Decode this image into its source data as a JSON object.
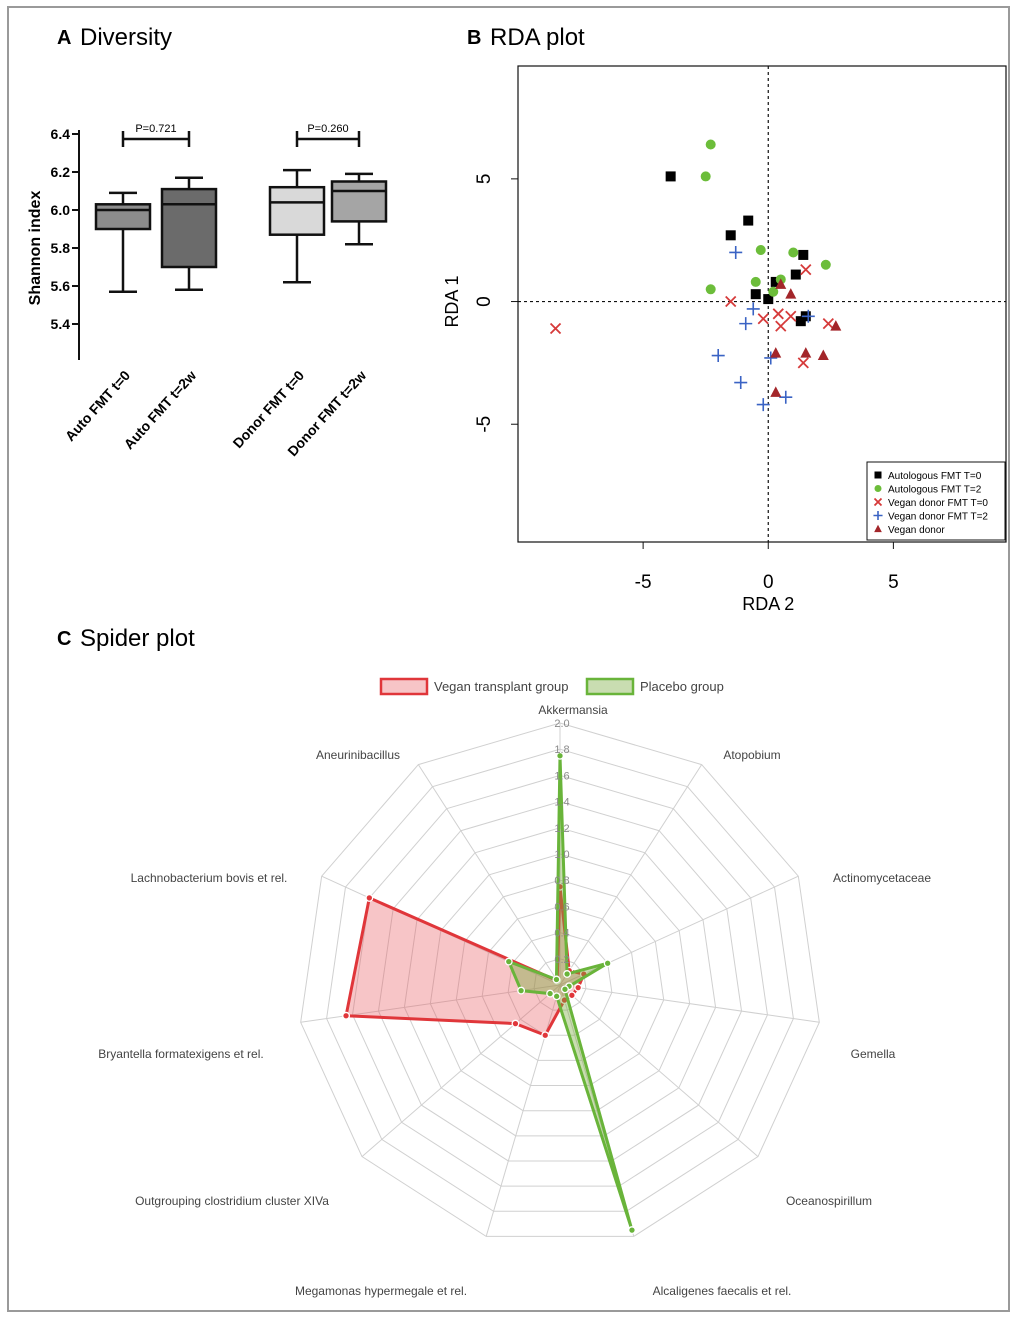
{
  "panels": {
    "a": {
      "letter": "A",
      "title": "Diversity"
    },
    "b": {
      "letter": "B",
      "title": "RDA plot"
    },
    "c": {
      "letter": "C",
      "title": "Spider plot"
    }
  },
  "chart_data": [
    {
      "type": "box",
      "ylabel": "Shannon index",
      "ylim": [
        5.4,
        6.4
      ],
      "yticks": [
        "5.4",
        "5.6",
        "5.8",
        "6.0",
        "6.2",
        "6.4"
      ],
      "categories": [
        "Auto FMT t=0",
        "Auto FMT t=2w",
        "Donor FMT t=0",
        "Donor FMT t=2w"
      ],
      "boxes": [
        {
          "min": 5.57,
          "q1": 5.9,
          "median": 6.0,
          "q3": 6.03,
          "max": 6.09,
          "color": "#8c8c8c"
        },
        {
          "min": 5.58,
          "q1": 5.7,
          "median": 6.03,
          "q3": 6.11,
          "max": 6.17,
          "color": "#6b6b6b"
        },
        {
          "min": 5.62,
          "q1": 5.87,
          "median": 6.04,
          "q3": 6.12,
          "max": 6.21,
          "color": "#d9d9d9"
        },
        {
          "min": 5.82,
          "q1": 5.94,
          "median": 6.1,
          "q3": 6.15,
          "max": 6.19,
          "color": "#a5a5a5"
        }
      ],
      "annotations": [
        {
          "text": "P=0.721",
          "pair": [
            0,
            1
          ]
        },
        {
          "text": "P=0.260",
          "pair": [
            2,
            3
          ]
        }
      ]
    },
    {
      "type": "scatter",
      "xlabel": "RDA 2",
      "ylabel": "RDA 1",
      "xlim": [
        -10,
        9.5
      ],
      "ylim": [
        -9.8,
        9.6
      ],
      "xticks": [
        "-5",
        "0",
        "5"
      ],
      "yticks": [
        "-5",
        "0",
        "5"
      ],
      "reference_lines": {
        "x": 0,
        "y": 0,
        "style": "dotted"
      },
      "legend_position": "bottom-right",
      "series": [
        {
          "name": "Autologous FMT T=0",
          "marker": "square",
          "color": "#000000",
          "points": [
            [
              -3.9,
              5.1
            ],
            [
              -0.8,
              3.3
            ],
            [
              -1.5,
              2.7
            ],
            [
              1.4,
              1.9
            ],
            [
              1.1,
              1.1
            ],
            [
              0.3,
              0.8
            ],
            [
              -0.5,
              0.3
            ],
            [
              0.0,
              0.1
            ],
            [
              1.5,
              -0.6
            ],
            [
              1.3,
              -0.8
            ]
          ]
        },
        {
          "name": "Autologous FMT T=2",
          "marker": "circle",
          "color": "#6cbd3a",
          "points": [
            [
              -2.3,
              6.4
            ],
            [
              -2.5,
              5.1
            ],
            [
              -0.3,
              2.1
            ],
            [
              1.0,
              2.0
            ],
            [
              2.3,
              1.5
            ],
            [
              0.5,
              0.9
            ],
            [
              -0.5,
              0.8
            ],
            [
              -2.3,
              0.5
            ],
            [
              0.2,
              0.4
            ]
          ]
        },
        {
          "name": "Vegan donor FMT T=0",
          "marker": "x",
          "color": "#d63a3a",
          "points": [
            [
              -8.5,
              -1.1
            ],
            [
              -1.5,
              0.0
            ],
            [
              1.5,
              1.3
            ],
            [
              -0.2,
              -0.7
            ],
            [
              0.4,
              -0.5
            ],
            [
              0.9,
              -0.6
            ],
            [
              0.5,
              -1.0
            ],
            [
              2.4,
              -0.9
            ],
            [
              1.4,
              -2.5
            ]
          ]
        },
        {
          "name": "Vegan donor FMT T=2",
          "marker": "plus",
          "color": "#3a63c4",
          "points": [
            [
              -1.3,
              2.0
            ],
            [
              -0.6,
              -0.3
            ],
            [
              -0.9,
              -0.9
            ],
            [
              1.6,
              -0.6
            ],
            [
              -2.0,
              -2.2
            ],
            [
              0.1,
              -2.3
            ],
            [
              -1.1,
              -3.3
            ],
            [
              0.7,
              -3.9
            ],
            [
              -0.2,
              -4.2
            ]
          ]
        },
        {
          "name": "Vegan donor",
          "marker": "triangle",
          "color": "#a3262a",
          "points": [
            [
              0.5,
              0.7
            ],
            [
              0.9,
              0.3
            ],
            [
              2.7,
              -1.0
            ],
            [
              0.3,
              -2.1
            ],
            [
              1.5,
              -2.1
            ],
            [
              2.2,
              -2.2
            ],
            [
              0.3,
              -3.7
            ]
          ]
        }
      ]
    },
    {
      "type": "radar",
      "axes": [
        "Akkermansia",
        "Atopobium",
        "Actinomycetaceae",
        "Gemella",
        "Oceanospirillum",
        "Alcaligenes faecalis et rel.",
        "Megamonas hypermegale et rel.",
        "Outgrouping clostridium cluster XIVa",
        "Bryantella formatexigens et rel.",
        "Lachnobacterium bovis et rel.",
        "Aneurinibacillus"
      ],
      "rlim": [
        0,
        2.0
      ],
      "rticks": [
        "0.2",
        "0.4",
        "0.6",
        "0.8",
        "1.0",
        "1.2",
        "1.4",
        "1.6",
        "1.8",
        "2.0"
      ],
      "legend_position": "top",
      "series": [
        {
          "name": "Vegan transplant group",
          "color": "#e0363a",
          "fill": "rgba(232,90,95,0.35)",
          "values": [
            0.75,
            0.13,
            0.2,
            0.14,
            0.12,
            0.12,
            0.4,
            0.45,
            1.65,
            1.6,
            0.04
          ]
        },
        {
          "name": "Placebo group",
          "color": "#69b43a",
          "fill": "rgba(120,170,60,0.40)",
          "values": [
            1.75,
            0.1,
            0.4,
            0.07,
            0.05,
            1.95,
            0.09,
            0.1,
            0.3,
            0.43,
            0.05
          ]
        }
      ]
    }
  ]
}
